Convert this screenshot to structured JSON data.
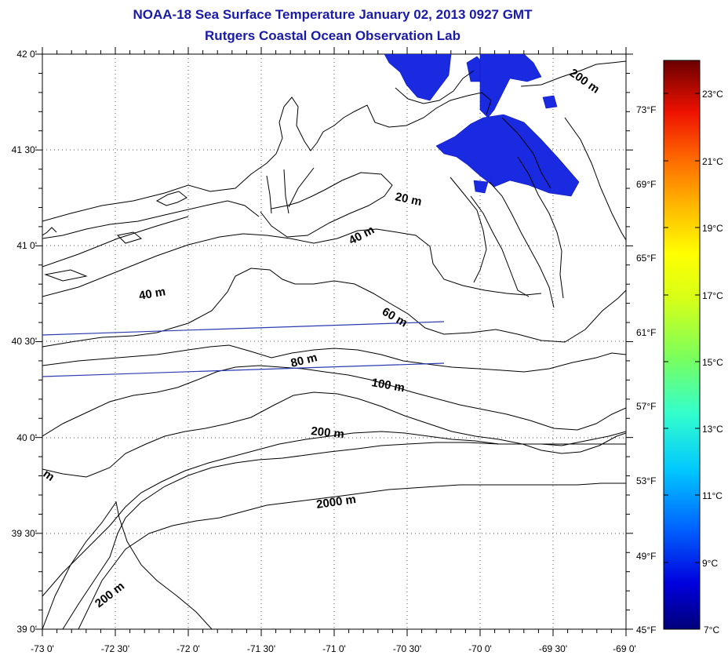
{
  "header": {
    "title": "NOAA-18 Sea Surface Temperature January 02, 2013 0927 GMT",
    "subtitle": "Rutgers Coastal Ocean Observation Lab"
  },
  "map": {
    "lat_labels": [
      "42 0'",
      "41 30'",
      "41 0'",
      "40 30'",
      "40 0'",
      "39 30'",
      "39 0'"
    ],
    "lon_labels": [
      "-73 0'",
      "-72 30'",
      "-72 0'",
      "-71 30'",
      "-71 0'",
      "-70 30'",
      "-70 0'",
      "-69 30'",
      "-69 0'"
    ],
    "lat_range": [
      39.0,
      42.0
    ],
    "lon_range": [
      -73.0,
      -69.0
    ],
    "grid": "dotted",
    "contour_labels": [
      "200 m",
      "20 m",
      "40 m",
      "40 m",
      "60 m",
      "80 m",
      "100 m",
      "200 m",
      "2000 m",
      "200 m",
      "m"
    ],
    "sst_color": "#1a2ae0",
    "land_color": "#ffffff",
    "line_color": "#000000",
    "track_color": "#2a3ab0"
  },
  "colorbar": {
    "celsius_labels": [
      "23°C",
      "21°C",
      "19°C",
      "17°C",
      "15°C",
      "13°C",
      "11°C",
      "9°C",
      "7°C"
    ],
    "fahrenheit_labels": [
      "73°F",
      "69°F",
      "65°F",
      "61°F",
      "57°F",
      "53°F",
      "49°F",
      "45°F"
    ],
    "range_c": [
      7,
      25
    ],
    "colors": [
      "#00007a",
      "#0000dd",
      "#0066ff",
      "#00c8ff",
      "#33ffcc",
      "#7cff5a",
      "#d6ff18",
      "#ffff00",
      "#ffbb00",
      "#ff6600",
      "#ee1100",
      "#990000",
      "#6a0000"
    ]
  }
}
